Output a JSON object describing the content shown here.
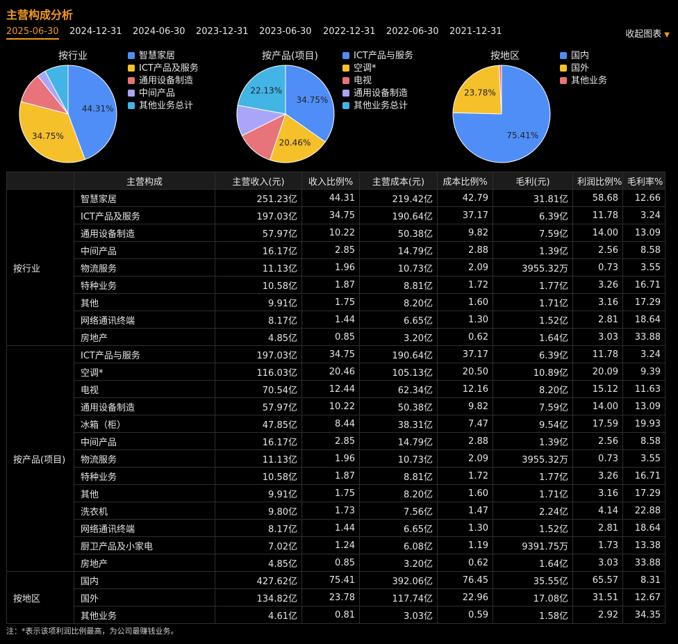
{
  "title": "主营构成分析",
  "tabs": [
    "2025-06-30",
    "2024-12-31",
    "2024-06-30",
    "2023-12-31",
    "2023-06-30",
    "2022-12-31",
    "2022-06-30",
    "2021-12-31"
  ],
  "active_tab": "2025-06-30",
  "collapse_label": "收起图表",
  "colors": {
    "accent": "#f29a1e",
    "blue": "#4f8ef7",
    "yellow": "#f6c02b",
    "red": "#e8737a",
    "purple": "#a9a5f7",
    "cyan": "#42b4e6"
  },
  "chart_data": [
    {
      "type": "pie",
      "title": "按行业",
      "labels": [
        "智慧家居",
        "ICT产品及服务",
        "通用设备制造",
        "中间产品",
        "其他业务总计"
      ],
      "values": [
        44.31,
        34.75,
        10.22,
        2.85,
        7.87
      ],
      "colors": [
        "#4f8ef7",
        "#f6c02b",
        "#e8737a",
        "#a9a5f7",
        "#42b4e6"
      ],
      "value_labels": [
        "44.31%",
        "34.75%",
        "",
        "",
        ""
      ]
    },
    {
      "type": "pie",
      "title": "按产品(项目)",
      "labels": [
        "ICT产品与服务",
        "空调*",
        "电视",
        "通用设备制造",
        "其他业务总计"
      ],
      "values": [
        34.75,
        20.46,
        12.44,
        10.22,
        22.13
      ],
      "colors": [
        "#4f8ef7",
        "#f6c02b",
        "#e8737a",
        "#a9a5f7",
        "#42b4e6"
      ],
      "value_labels": [
        "34.75%",
        "20.46%",
        "",
        "",
        "22.13%"
      ]
    },
    {
      "type": "pie",
      "title": "按地区",
      "labels": [
        "国内",
        "国外",
        "其他业务"
      ],
      "values": [
        75.41,
        23.78,
        0.81
      ],
      "colors": [
        "#4f8ef7",
        "#f6c02b",
        "#e8737a"
      ],
      "value_labels": [
        "75.41%",
        "23.78%",
        ""
      ]
    }
  ],
  "table": {
    "headers": [
      "主营构成",
      "主营收入(元)",
      "收入比例%",
      "主营成本(元)",
      "成本比例%",
      "毛利(元)",
      "利润比例%",
      "毛利率%"
    ],
    "groups": [
      {
        "name": "按行业",
        "rows": [
          [
            "智慧家居",
            "251.23亿",
            "44.31",
            "219.42亿",
            "42.79",
            "31.81亿",
            "58.68",
            "12.66"
          ],
          [
            "ICT产品及服务",
            "197.03亿",
            "34.75",
            "190.64亿",
            "37.17",
            "6.39亿",
            "11.78",
            "3.24"
          ],
          [
            "通用设备制造",
            "57.97亿",
            "10.22",
            "50.38亿",
            "9.82",
            "7.59亿",
            "14.00",
            "13.09"
          ],
          [
            "中间产品",
            "16.17亿",
            "2.85",
            "14.79亿",
            "2.88",
            "1.39亿",
            "2.56",
            "8.58"
          ],
          [
            "物流服务",
            "11.13亿",
            "1.96",
            "10.73亿",
            "2.09",
            "3955.32万",
            "0.73",
            "3.55"
          ],
          [
            "特种业务",
            "10.58亿",
            "1.87",
            "8.81亿",
            "1.72",
            "1.77亿",
            "3.26",
            "16.71"
          ],
          [
            "其他",
            "9.91亿",
            "1.75",
            "8.20亿",
            "1.60",
            "1.71亿",
            "3.16",
            "17.29"
          ],
          [
            "网络通讯终端",
            "8.17亿",
            "1.44",
            "6.65亿",
            "1.30",
            "1.52亿",
            "2.81",
            "18.64"
          ],
          [
            "房地产",
            "4.85亿",
            "0.85",
            "3.20亿",
            "0.62",
            "1.64亿",
            "3.03",
            "33.88"
          ]
        ]
      },
      {
        "name": "按产品(项目)",
        "rows": [
          [
            "ICT产品与服务",
            "197.03亿",
            "34.75",
            "190.64亿",
            "37.17",
            "6.39亿",
            "11.78",
            "3.24"
          ],
          [
            "空调*",
            "116.03亿",
            "20.46",
            "105.13亿",
            "20.50",
            "10.89亿",
            "20.09",
            "9.39"
          ],
          [
            "电视",
            "70.54亿",
            "12.44",
            "62.34亿",
            "12.16",
            "8.20亿",
            "15.12",
            "11.63"
          ],
          [
            "通用设备制造",
            "57.97亿",
            "10.22",
            "50.38亿",
            "9.82",
            "7.59亿",
            "14.00",
            "13.09"
          ],
          [
            "冰箱（柜）",
            "47.85亿",
            "8.44",
            "38.31亿",
            "7.47",
            "9.54亿",
            "17.59",
            "19.93"
          ],
          [
            "中间产品",
            "16.17亿",
            "2.85",
            "14.79亿",
            "2.88",
            "1.39亿",
            "2.56",
            "8.58"
          ],
          [
            "物流服务",
            "11.13亿",
            "1.96",
            "10.73亿",
            "2.09",
            "3955.32万",
            "0.73",
            "3.55"
          ],
          [
            "特种业务",
            "10.58亿",
            "1.87",
            "8.81亿",
            "1.72",
            "1.77亿",
            "3.26",
            "16.71"
          ],
          [
            "其他",
            "9.91亿",
            "1.75",
            "8.20亿",
            "1.60",
            "1.71亿",
            "3.16",
            "17.29"
          ],
          [
            "洗衣机",
            "9.80亿",
            "1.73",
            "7.56亿",
            "1.47",
            "2.24亿",
            "4.14",
            "22.88"
          ],
          [
            "网络通讯终端",
            "8.17亿",
            "1.44",
            "6.65亿",
            "1.30",
            "1.52亿",
            "2.81",
            "18.64"
          ],
          [
            "厨卫产品及小家电",
            "7.02亿",
            "1.24",
            "6.08亿",
            "1.19",
            "9391.75万",
            "1.73",
            "13.38"
          ],
          [
            "房地产",
            "4.85亿",
            "0.85",
            "3.20亿",
            "0.62",
            "1.64亿",
            "3.03",
            "33.88"
          ]
        ]
      },
      {
        "name": "按地区",
        "rows": [
          [
            "国内",
            "427.62亿",
            "75.41",
            "392.06亿",
            "76.45",
            "35.55亿",
            "65.57",
            "8.31"
          ],
          [
            "国外",
            "134.82亿",
            "23.78",
            "117.74亿",
            "22.96",
            "17.08亿",
            "31.51",
            "12.67"
          ],
          [
            "其他业务",
            "4.61亿",
            "0.81",
            "3.03亿",
            "0.59",
            "1.58亿",
            "2.92",
            "34.35"
          ]
        ]
      }
    ]
  },
  "note": "注：*表示该项利润比例最高，为公司最赚钱业务。"
}
